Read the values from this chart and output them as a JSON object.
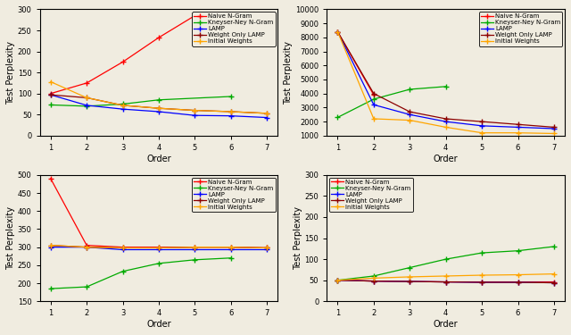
{
  "orders": [
    1,
    2,
    3,
    4,
    5,
    6,
    7
  ],
  "legend_labels": [
    "Naive N-Gram",
    "Kneyser-Ney N-Gram",
    "LAMP",
    "Weight Only LAMP",
    "Initial Weights"
  ],
  "colors": [
    "#ff0000",
    "#00aa00",
    "#0000ff",
    "#8b0000",
    "#ffa500"
  ],
  "bg_color": "#f0ece0",
  "panels": [
    {
      "ylabel": "Test Perplexity",
      "xlabel": "Order",
      "ylim": [
        0,
        300
      ],
      "yticks": [
        0,
        50,
        100,
        150,
        200,
        250,
        300
      ],
      "legend_loc": "upper right",
      "series": [
        {
          "x": [
            1,
            2,
            3,
            4,
            5
          ],
          "y": [
            100,
            125,
            175,
            233,
            285
          ]
        },
        {
          "x": [
            1,
            2,
            3,
            4,
            6
          ],
          "y": [
            73,
            70,
            75,
            85,
            93
          ]
        },
        {
          "x": [
            1,
            2,
            3,
            4,
            5,
            6,
            7
          ],
          "y": [
            97,
            72,
            63,
            57,
            48,
            47,
            43
          ]
        },
        {
          "x": [
            1,
            2,
            3,
            4,
            5,
            6,
            7
          ],
          "y": [
            97,
            90,
            72,
            65,
            60,
            57,
            53
          ]
        },
        {
          "x": [
            1,
            2,
            3,
            4,
            5,
            6,
            7
          ],
          "y": [
            128,
            90,
            72,
            65,
            60,
            57,
            53
          ]
        }
      ]
    },
    {
      "ylabel": "Test Perplexity",
      "xlabel": "Order",
      "ylim": [
        1000,
        10000
      ],
      "yticks": [
        1000,
        2000,
        3000,
        4000,
        5000,
        6000,
        7000,
        8000,
        9000,
        10000
      ],
      "legend_loc": "upper right",
      "series": [
        {
          "x": [
            1,
            2
          ],
          "y": [
            8400,
            3900
          ]
        },
        {
          "x": [
            1,
            2,
            3,
            4
          ],
          "y": [
            2300,
            3600,
            4300,
            4500
          ]
        },
        {
          "x": [
            1,
            2,
            3,
            4,
            5,
            6,
            7
          ],
          "y": [
            8400,
            3200,
            2500,
            2000,
            1700,
            1600,
            1500
          ]
        },
        {
          "x": [
            1,
            2,
            3,
            4,
            5,
            6,
            7
          ],
          "y": [
            8400,
            4000,
            2700,
            2200,
            2000,
            1800,
            1600
          ]
        },
        {
          "x": [
            1,
            2,
            3,
            4,
            5,
            6,
            7
          ],
          "y": [
            8400,
            2200,
            2100,
            1600,
            1200,
            1200,
            1150
          ]
        }
      ]
    },
    {
      "ylabel": "Test Perplexity",
      "xlabel": "Order",
      "ylim": [
        150,
        500
      ],
      "yticks": [
        150,
        200,
        250,
        300,
        350,
        400,
        450,
        500
      ],
      "legend_loc": "upper right",
      "series": [
        {
          "x": [
            1,
            2,
            3,
            4,
            5,
            6,
            7
          ],
          "y": [
            490,
            305,
            300,
            300,
            300,
            300,
            298
          ]
        },
        {
          "x": [
            1,
            2,
            3,
            4,
            5,
            6
          ],
          "y": [
            185,
            190,
            233,
            255,
            265,
            270
          ]
        },
        {
          "x": [
            1,
            2,
            3,
            4,
            5,
            6,
            7
          ],
          "y": [
            300,
            300,
            293,
            293,
            293,
            293,
            293
          ]
        },
        {
          "x": [
            1,
            2,
            3,
            4,
            5,
            6,
            7
          ],
          "y": [
            305,
            300,
            298,
            298,
            300,
            300,
            298
          ]
        },
        {
          "x": [
            1,
            2,
            3,
            4,
            5,
            6,
            7
          ],
          "y": [
            305,
            300,
            298,
            298,
            300,
            300,
            298
          ]
        }
      ]
    },
    {
      "ylabel": "Test Perplexity",
      "xlabel": "Order",
      "ylim": [
        0,
        300
      ],
      "yticks": [
        0,
        50,
        100,
        150,
        200,
        250,
        300
      ],
      "legend_loc": "upper left",
      "series": [
        {
          "x": [
            1,
            2,
            3,
            4,
            5,
            6,
            7
          ],
          "y": [
            50,
            48,
            47,
            46,
            46,
            46,
            46
          ]
        },
        {
          "x": [
            1,
            2,
            3,
            4,
            5,
            6,
            7
          ],
          "y": [
            50,
            60,
            80,
            100,
            115,
            120,
            130
          ]
        },
        {
          "x": [
            1,
            2,
            3,
            4,
            5,
            6,
            7
          ],
          "y": [
            50,
            48,
            47,
            46,
            45,
            45,
            44
          ]
        },
        {
          "x": [
            1,
            2,
            3,
            4,
            5,
            6,
            7
          ],
          "y": [
            50,
            48,
            47,
            46,
            45,
            45,
            44
          ]
        },
        {
          "x": [
            1,
            2,
            3,
            4,
            5,
            6,
            7
          ],
          "y": [
            50,
            55,
            58,
            60,
            62,
            63,
            65
          ]
        }
      ]
    }
  ]
}
